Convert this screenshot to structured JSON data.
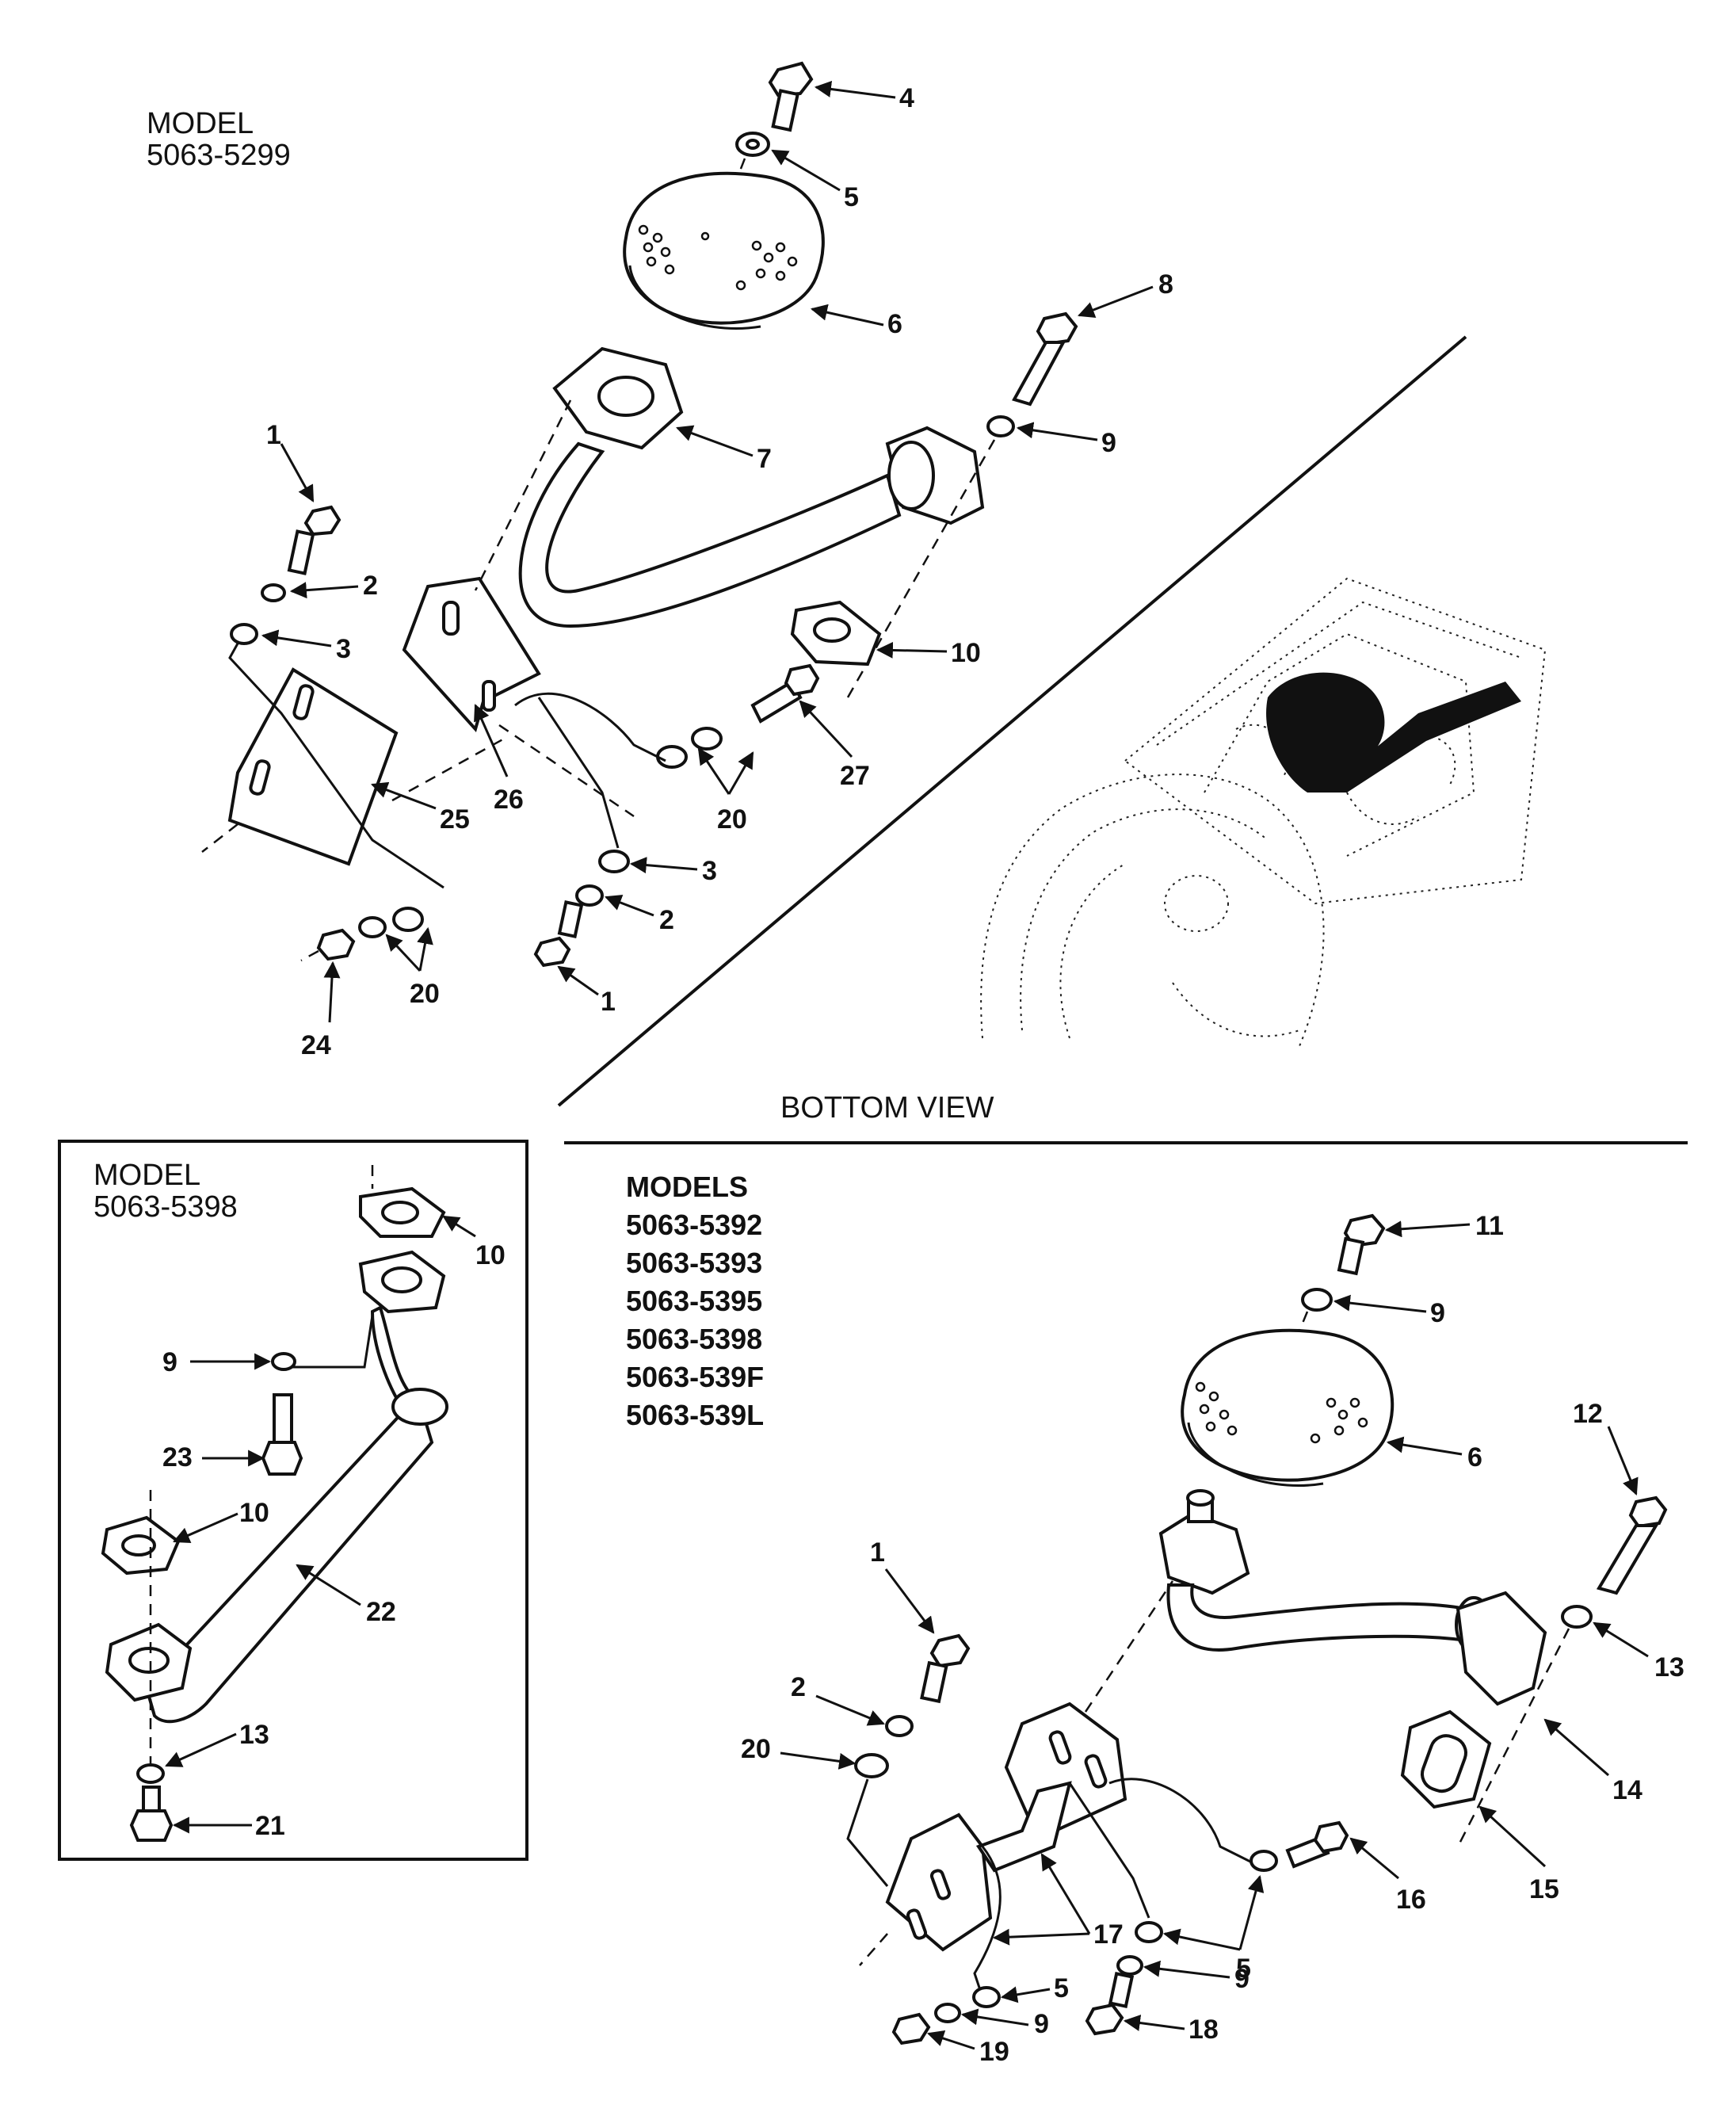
{
  "labels": {
    "model_top_line1": "MODEL",
    "model_top_line2": "5063-5299",
    "bottom_view": "BOTTOM VIEW",
    "model_box_line1": "MODEL",
    "model_box_line2": "5063-5398",
    "models_list_title": "MODELS",
    "models_list": [
      "5063-5392",
      "5063-5393",
      "5063-5395",
      "5063-5398",
      "5063-539F",
      "5063-539L"
    ]
  },
  "callouts_top": [
    "4",
    "5",
    "6",
    "8",
    "7",
    "9",
    "1",
    "2",
    "3",
    "10",
    "27",
    "20",
    "25",
    "26",
    "3",
    "2",
    "20",
    "24",
    "1"
  ],
  "callouts_box": [
    "10",
    "9",
    "23",
    "10",
    "22",
    "13",
    "21"
  ],
  "callouts_bottom": [
    "11",
    "9",
    "6",
    "12",
    "1",
    "13",
    "2",
    "20",
    "14",
    "15",
    "16",
    "17",
    "5",
    "9",
    "5",
    "9",
    "18",
    "19"
  ],
  "colors": {
    "ink": "#111111",
    "paper": "#ffffff"
  }
}
